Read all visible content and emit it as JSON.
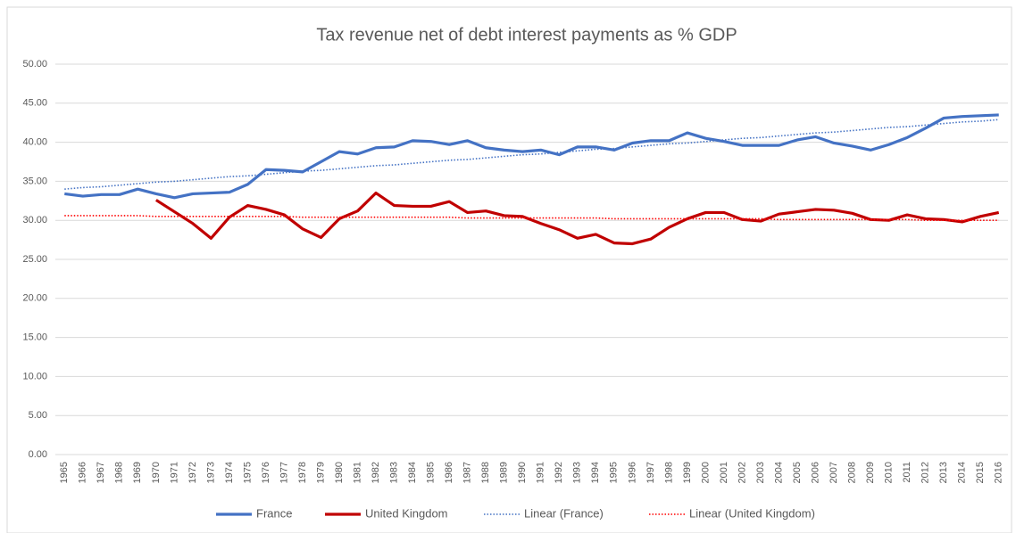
{
  "chart_data": {
    "type": "line",
    "title": "Tax revenue net of debt interest payments as % GDP",
    "categories": [
      "1965",
      "1966",
      "1967",
      "1968",
      "1969",
      "1970",
      "1971",
      "1972",
      "1973",
      "1974",
      "1975",
      "1976",
      "1977",
      "1978",
      "1979",
      "1980",
      "1981",
      "1982",
      "1983",
      "1984",
      "1985",
      "1986",
      "1987",
      "1988",
      "1989",
      "1990",
      "1991",
      "1992",
      "1993",
      "1994",
      "1995",
      "1996",
      "1997",
      "1998",
      "1999",
      "2000",
      "2001",
      "2002",
      "2003",
      "2004",
      "2005",
      "2006",
      "2007",
      "2008",
      "2009",
      "2010",
      "2011",
      "2012",
      "2013",
      "2014",
      "2015",
      "2016"
    ],
    "series": [
      {
        "name": "France",
        "color": "#4472c4",
        "style": "solid",
        "values": [
          33.4,
          33.1,
          33.3,
          33.3,
          34.0,
          33.4,
          32.9,
          33.4,
          33.5,
          33.6,
          34.6,
          36.5,
          36.4,
          36.2,
          37.5,
          38.8,
          38.5,
          39.3,
          39.4,
          40.2,
          40.1,
          39.7,
          40.2,
          39.3,
          39.0,
          38.8,
          39.0,
          38.4,
          39.4,
          39.4,
          39.0,
          39.9,
          40.2,
          40.2,
          41.2,
          40.5,
          40.1,
          39.6,
          39.6,
          39.6,
          40.3,
          40.7,
          39.9,
          39.5,
          39.0,
          39.7,
          40.6,
          41.8,
          43.1,
          43.3,
          43.4,
          43.5
        ]
      },
      {
        "name": "United Kingdom",
        "color": "#c00000",
        "style": "solid",
        "values": [
          null,
          null,
          null,
          null,
          null,
          32.6,
          31.1,
          29.6,
          27.7,
          30.4,
          31.9,
          31.4,
          30.7,
          28.9,
          27.8,
          30.2,
          31.2,
          33.5,
          31.9,
          31.8,
          31.8,
          32.4,
          31.0,
          31.2,
          30.6,
          30.5,
          29.6,
          28.8,
          27.7,
          28.2,
          27.1,
          27.0,
          27.6,
          29.1,
          30.2,
          31.0,
          31.0,
          30.1,
          29.9,
          30.8,
          31.1,
          31.4,
          31.3,
          30.9,
          30.1,
          30.0,
          30.7,
          30.2,
          30.1,
          29.8,
          30.5,
          31.0
        ]
      },
      {
        "name": "Linear (France)",
        "color": "#4472c4",
        "style": "dotted",
        "values": [
          34.0,
          34.2,
          34.3,
          34.5,
          34.7,
          34.9,
          35.0,
          35.2,
          35.4,
          35.6,
          35.7,
          35.9,
          36.1,
          36.3,
          36.4,
          36.6,
          36.8,
          37.0,
          37.1,
          37.3,
          37.5,
          37.7,
          37.8,
          38.0,
          38.2,
          38.4,
          38.5,
          38.7,
          38.9,
          39.1,
          39.2,
          39.4,
          39.6,
          39.8,
          39.9,
          40.1,
          40.3,
          40.5,
          40.6,
          40.8,
          41.0,
          41.2,
          41.3,
          41.5,
          41.7,
          41.9,
          42.0,
          42.2,
          42.4,
          42.6,
          42.7,
          42.9
        ]
      },
      {
        "name": "Linear (United Kingdom)",
        "color": "#ff0000",
        "style": "dotted",
        "values": [
          30.6,
          30.6,
          30.6,
          30.6,
          30.6,
          30.5,
          30.5,
          30.5,
          30.5,
          30.5,
          30.5,
          30.5,
          30.5,
          30.4,
          30.4,
          30.4,
          30.4,
          30.4,
          30.4,
          30.4,
          30.4,
          30.4,
          30.3,
          30.3,
          30.3,
          30.3,
          30.3,
          30.3,
          30.3,
          30.3,
          30.2,
          30.2,
          30.2,
          30.2,
          30.2,
          30.2,
          30.2,
          30.2,
          30.2,
          30.1,
          30.1,
          30.1,
          30.1,
          30.1,
          30.1,
          30.1,
          30.1,
          30.0,
          30.0,
          30.0,
          30.0,
          30.0
        ]
      }
    ],
    "ylim": [
      0,
      50
    ],
    "yticks": [
      {
        "value": 0,
        "label": "0.00"
      },
      {
        "value": 5,
        "label": "5.00"
      },
      {
        "value": 10,
        "label": "10.00"
      },
      {
        "value": 15,
        "label": "15.00"
      },
      {
        "value": 20,
        "label": "20.00"
      },
      {
        "value": 25,
        "label": "25.00"
      },
      {
        "value": 30,
        "label": "30.00"
      },
      {
        "value": 35,
        "label": "35.00"
      },
      {
        "value": 40,
        "label": "40.00"
      },
      {
        "value": 45,
        "label": "45.00"
      },
      {
        "value": 50,
        "label": "50.00"
      }
    ],
    "grid": true,
    "legend": "bottom"
  }
}
